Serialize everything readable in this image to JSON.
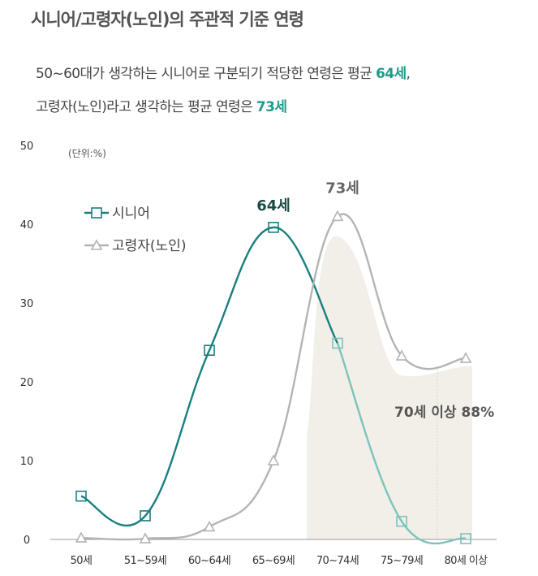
{
  "header": {
    "title": "시니어/고령자(노인)의 주관적 기준 연령",
    "line1_pre": "50~60대가 생각하는 시니어로 구분되기 적당한 연령은 평균 ",
    "line1_hl": "64세",
    "line1_post": ",",
    "line2_pre": "고령자(노인)라고 생각하는 평균 연령은 ",
    "line2_hl": "73세"
  },
  "colors": {
    "senior": "#1a7f7e",
    "elderly": "#b4b4b4",
    "shade": "#f1efe7",
    "peak_senior": "#1b4a45",
    "highlight": "#1e9b8a"
  },
  "chart_data": {
    "type": "line",
    "categories": [
      "50세",
      "51~59세",
      "60~64세",
      "65~69세",
      "70~74세",
      "75~79세",
      "80세 이상"
    ],
    "series": [
      {
        "name": "시니어",
        "values": [
          5.5,
          3.0,
          24.0,
          39.6,
          24.9,
          2.3,
          0.1
        ]
      },
      {
        "name": "고령자(노인)",
        "values": [
          0.2,
          0.1,
          1.6,
          10.0,
          41.0,
          23.3,
          23.0
        ]
      }
    ],
    "ylim": [
      0,
      50
    ],
    "yticks": [
      0,
      10,
      20,
      30,
      40,
      50
    ],
    "unit_label": "(단위:%)",
    "peak_labels": [
      "64세",
      "73세"
    ],
    "shaded_annotation": "70세 이상 88%",
    "grid": false,
    "legend": "upper-left"
  }
}
